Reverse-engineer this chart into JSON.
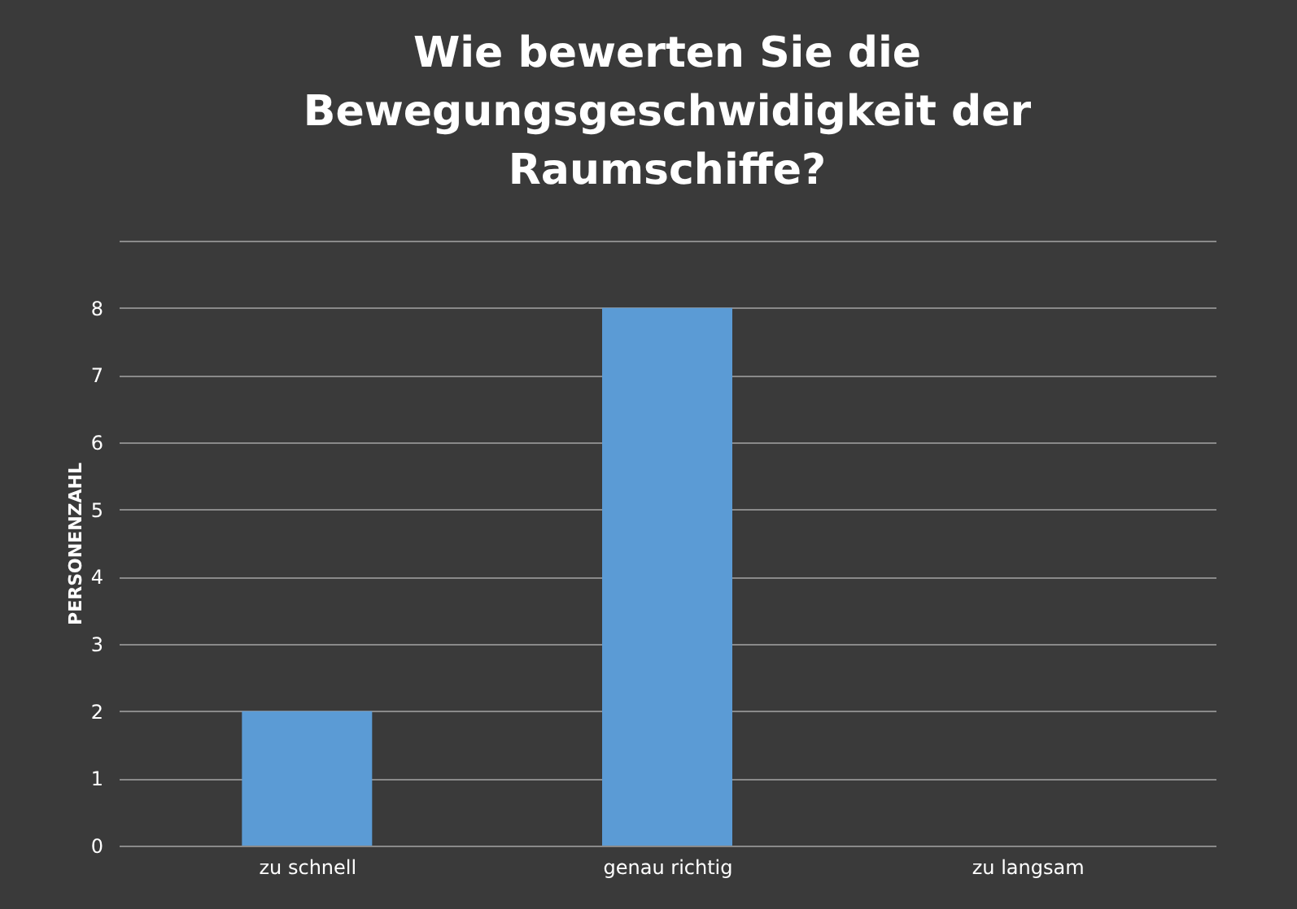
{
  "chart_data": {
    "type": "bar",
    "title": [
      "Wie bewerten Sie die",
      "Bewegungsgeschwidigkeit der",
      "Raumschiffe?"
    ],
    "categories": [
      "zu schnell",
      "genau richtig",
      "zu langsam"
    ],
    "values": [
      2,
      8,
      0
    ],
    "color": "#5b9bd5",
    "ylabel": "PERSONENZAHL",
    "ylim": [
      0,
      9
    ],
    "yticks": [
      0,
      1,
      2,
      3,
      4,
      5,
      6,
      7,
      8,
      {
        "value": 9,
        "label": null
      }
    ],
    "grid": "y"
  }
}
